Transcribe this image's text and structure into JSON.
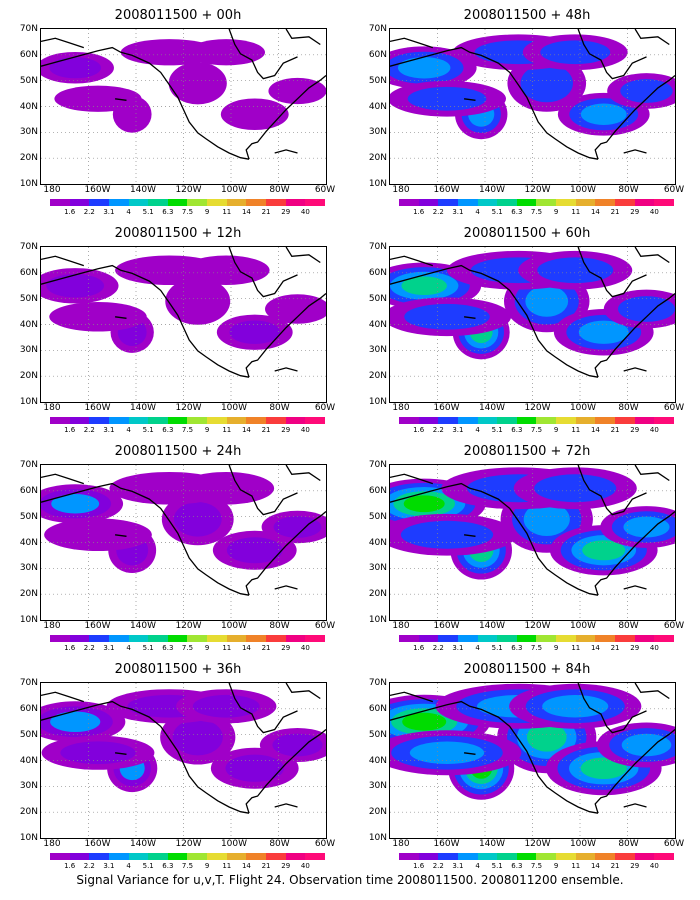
{
  "panels": [
    {
      "title": "2008011500 + 00h",
      "level": 0.25
    },
    {
      "title": "2008011500 + 48h",
      "level": 0.55
    },
    {
      "title": "2008011500 + 12h",
      "level": 0.35
    },
    {
      "title": "2008011500 + 60h",
      "level": 0.65
    },
    {
      "title": "2008011500 + 24h",
      "level": 0.45
    },
    {
      "title": "2008011500 + 72h",
      "level": 0.75
    },
    {
      "title": "2008011500 + 36h",
      "level": 0.5
    },
    {
      "title": "2008011500 + 84h",
      "level": 0.85
    }
  ],
  "lat_labels": [
    "70N",
    "60N",
    "50N",
    "40N",
    "30N",
    "20N",
    "10N"
  ],
  "lon_labels": [
    "180",
    "160W",
    "140W",
    "120W",
    "100W",
    "80W",
    "60W"
  ],
  "colorbar": {
    "labels": [
      "1.6",
      "2.2",
      "3.1",
      "4",
      "5.1",
      "6.3",
      "7.5",
      "9",
      "11",
      "14",
      "21",
      "29",
      "40"
    ],
    "colors": [
      "#a000c8",
      "#8200dc",
      "#1e3cff",
      "#0096ff",
      "#00c8c8",
      "#00d28c",
      "#00dc00",
      "#a0e632",
      "#e6dc32",
      "#e6af2d",
      "#f08228",
      "#fa3c3c",
      "#f00082",
      "#ff0a78"
    ]
  },
  "caption": "Signal Variance for u,v,T. Flight 24. Observation time 2008011500. 2008011200 ensemble."
}
